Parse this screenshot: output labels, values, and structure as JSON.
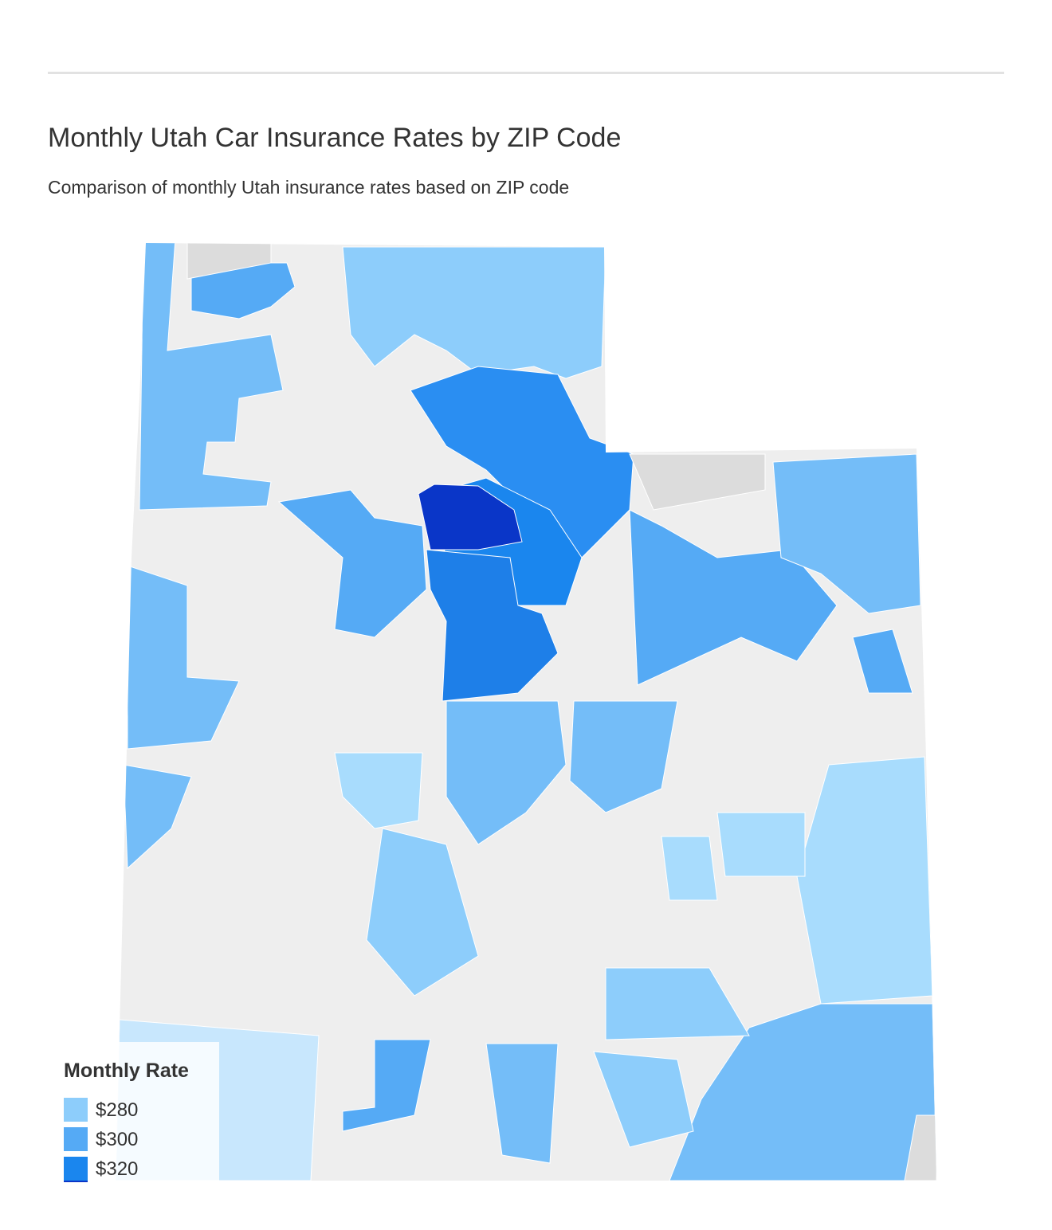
{
  "header": {
    "title": "Monthly Utah Car Insurance Rates by ZIP Code",
    "subtitle": "Comparison of monthly Utah insurance rates based on ZIP code"
  },
  "legend": {
    "title": "Monthly Rate",
    "items": [
      {
        "label": "$280",
        "color": "#8dcdfb"
      },
      {
        "label": "$300",
        "color": "#55aaf5"
      },
      {
        "label": "$320",
        "color": "#1a86ee"
      }
    ]
  }
}
